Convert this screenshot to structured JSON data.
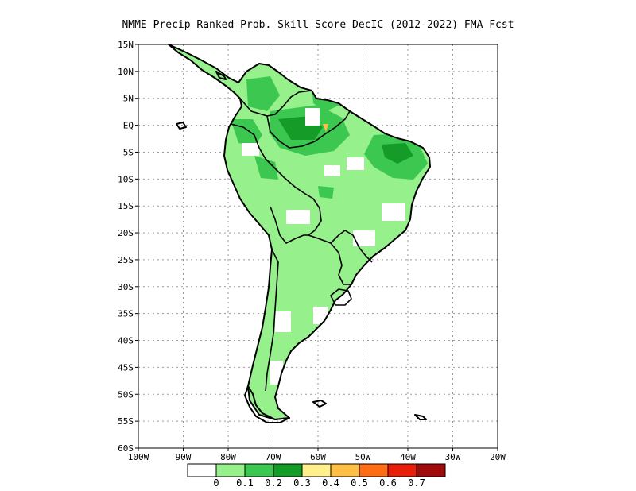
{
  "title": "NMME Precip Ranked Prob. Skill Score DecIC (2012-2022) FMA Fcst",
  "axes": {
    "x_ticks": [
      "100W",
      "90W",
      "80W",
      "70W",
      "60W",
      "50W",
      "40W",
      "30W",
      "20W"
    ],
    "y_ticks": [
      "15N",
      "10N",
      "5N",
      "EQ",
      "5S",
      "10S",
      "15S",
      "20S",
      "25S",
      "30S",
      "35S",
      "40S",
      "45S",
      "50S",
      "55S",
      "60S"
    ],
    "x_range_deg": [
      -100,
      -20
    ],
    "y_range_deg": [
      15,
      -60
    ],
    "grid": true
  },
  "legend": {
    "labels": [
      "0",
      "0.1",
      "0.2",
      "0.3",
      "0.4",
      "0.5",
      "0.6",
      "0.7"
    ],
    "colors": [
      "#ffffff",
      "#96f08c",
      "#3cc850",
      "#149b28",
      "#fff08c",
      "#ffbe46",
      "#ff6e14",
      "#e61e0a",
      "#a00a0a"
    ]
  },
  "colors": {
    "light_green": "#96f08c",
    "medium_green": "#3cc850",
    "yellow": "#fff08c",
    "orange": "#ffbe46"
  }
}
